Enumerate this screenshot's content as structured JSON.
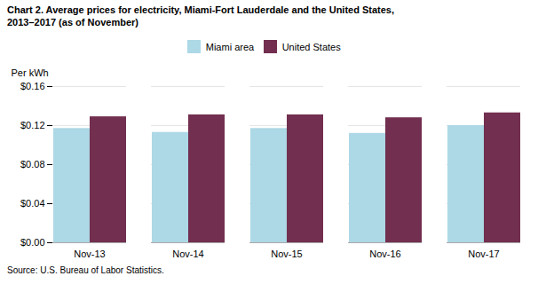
{
  "chart_data": {
    "type": "bar",
    "title": "Chart 2.  Average prices for electricity, Miami-Fort Lauderdale and the United States,",
    "subtitle": "2013–2017  (as of November)",
    "ylabel": "Per kWh",
    "source": "Source: U.S. Bureau of Labor Statistics.",
    "categories": [
      "Nov-13",
      "Nov-14",
      "Nov-15",
      "Nov-16",
      "Nov-17"
    ],
    "series": [
      {
        "name": "Miami area",
        "color": "#add8e6",
        "values": [
          0.117,
          0.113,
          0.117,
          0.112,
          0.12
        ]
      },
      {
        "name": "United States",
        "color": "#722f4f",
        "values": [
          0.129,
          0.131,
          0.131,
          0.128,
          0.133
        ]
      }
    ],
    "ylim": [
      0.0,
      0.16
    ],
    "yticks": [
      {
        "value": 0.0,
        "label": "$0.00"
      },
      {
        "value": 0.04,
        "label": "$0.04"
      },
      {
        "value": 0.08,
        "label": "$0.08"
      },
      {
        "value": 0.12,
        "label": "$0.12"
      },
      {
        "value": 0.16,
        "label": "$0.16"
      }
    ],
    "grid": true,
    "legend": "top"
  }
}
